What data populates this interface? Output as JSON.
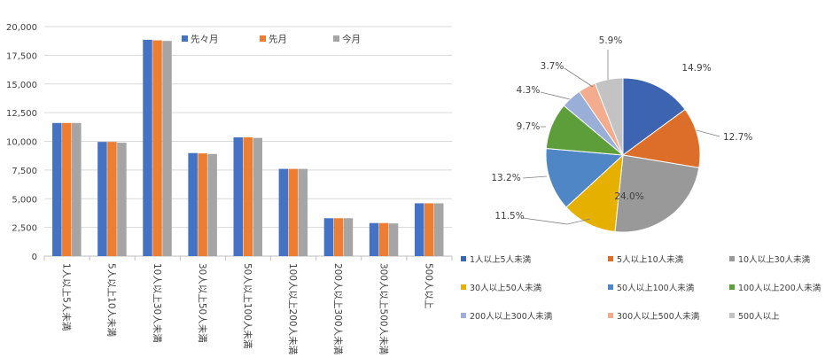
{
  "colors": {
    "series": [
      "#4472C4",
      "#ED7D31",
      "#A5A5A5"
    ],
    "pie": [
      "#3D64B0",
      "#DD6E2A",
      "#999999",
      "#E6B000",
      "#4F86C6",
      "#5E9E3A",
      "#9AAFD8",
      "#F4AC8E",
      "#C3C3C3"
    ],
    "gridline": "#D9D9D9",
    "axis": "#BFBFBF",
    "text": "#404040"
  },
  "chart_data": [
    {
      "type": "bar",
      "categories": [
        "1人以上5人未満",
        "5人以上10人未満",
        "10人以上30人未満",
        "30人以上50人未満",
        "50人以上100人未満",
        "100人以上200人未満",
        "200人以上300人未満",
        "300人以上500人未満",
        "500人以上"
      ],
      "series": [
        {
          "name": "先々月",
          "values": [
            11600,
            9950,
            18850,
            8980,
            10350,
            7600,
            3300,
            2880,
            4600
          ]
        },
        {
          "name": "先月",
          "values": [
            11600,
            9950,
            18800,
            8950,
            10350,
            7600,
            3300,
            2880,
            4600
          ]
        },
        {
          "name": "今月",
          "values": [
            11600,
            9880,
            18750,
            8900,
            10300,
            7600,
            3300,
            2850,
            4600
          ]
        }
      ],
      "yticks": [
        "0",
        "2,500",
        "5,000",
        "7,500",
        "10,000",
        "12,500",
        "15,000",
        "17,500",
        "20,000"
      ],
      "ylim": [
        0,
        20000
      ],
      "grid": true,
      "legend": "top"
    },
    {
      "type": "pie",
      "labels": [
        "1人以上5人未満",
        "5人以上10人未満",
        "10人以上30人未満",
        "30人以上50人未満",
        "50人以上100人未満",
        "100人以上200人未満",
        "200人以上300人未満",
        "300人以上500人未満",
        "500人以上"
      ],
      "values": [
        14.9,
        12.7,
        24.0,
        11.5,
        13.2,
        9.7,
        4.3,
        3.7,
        5.9
      ],
      "data_labels": [
        "14.9%",
        "12.7%",
        "24.0%",
        "11.5%",
        "13.2%",
        "9.7%",
        "4.3%",
        "3.7%",
        "5.9%"
      ],
      "legend": "bottom"
    }
  ]
}
